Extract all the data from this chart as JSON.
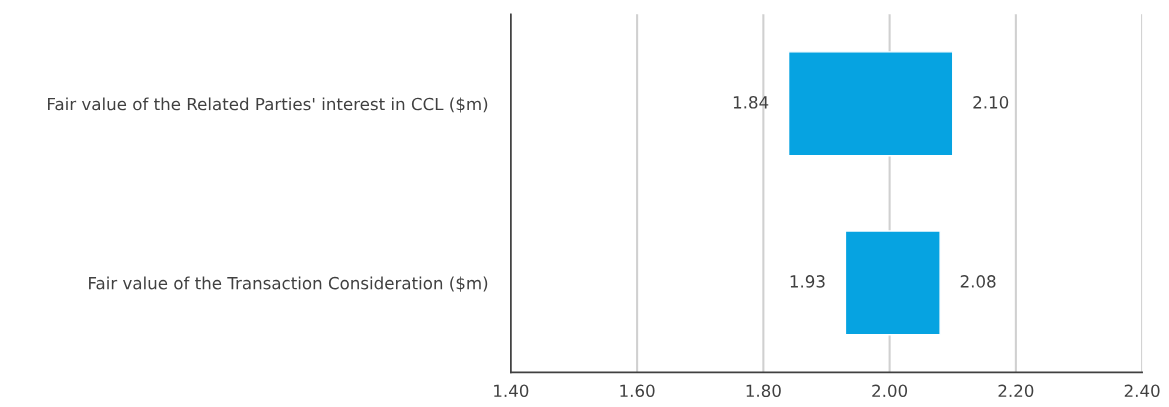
{
  "chart_data": {
    "type": "bar",
    "orientation": "horizontal",
    "categories": [
      "Fair value of the Related Parties' interest in CCL ($m)",
      "Fair value of the Transaction Consideration ($m)"
    ],
    "base": [
      1.84,
      1.93
    ],
    "values": [
      0.26,
      0.15
    ],
    "color": "#06a3e1",
    "xlim": [
      1.4,
      2.4
    ],
    "xticks": [
      {
        "value": 1.4,
        "label": "1.40"
      },
      {
        "value": 1.6,
        "label": "1.60"
      },
      {
        "value": 1.8,
        "label": "1.80"
      },
      {
        "value": 2.0,
        "label": "2.00"
      },
      {
        "value": 2.2,
        "label": "2.20"
      },
      {
        "value": 2.4,
        "label": "2.40"
      }
    ],
    "grid": "x",
    "annotations": [
      {
        "text": "1.84",
        "x": 1.84,
        "y": "Fair value of the Related Parties' interest in CCL ($m)"
      },
      {
        "text": "2.10",
        "x": 2.1,
        "y": "Fair value of the Related Parties' interest in CCL ($m)"
      },
      {
        "text": "1.93",
        "x": 1.93,
        "y": "Fair value of the Transaction Consideration ($m)"
      },
      {
        "text": "2.08",
        "x": 2.08,
        "y": "Fair value of the Transaction Consideration ($m)"
      }
    ]
  }
}
